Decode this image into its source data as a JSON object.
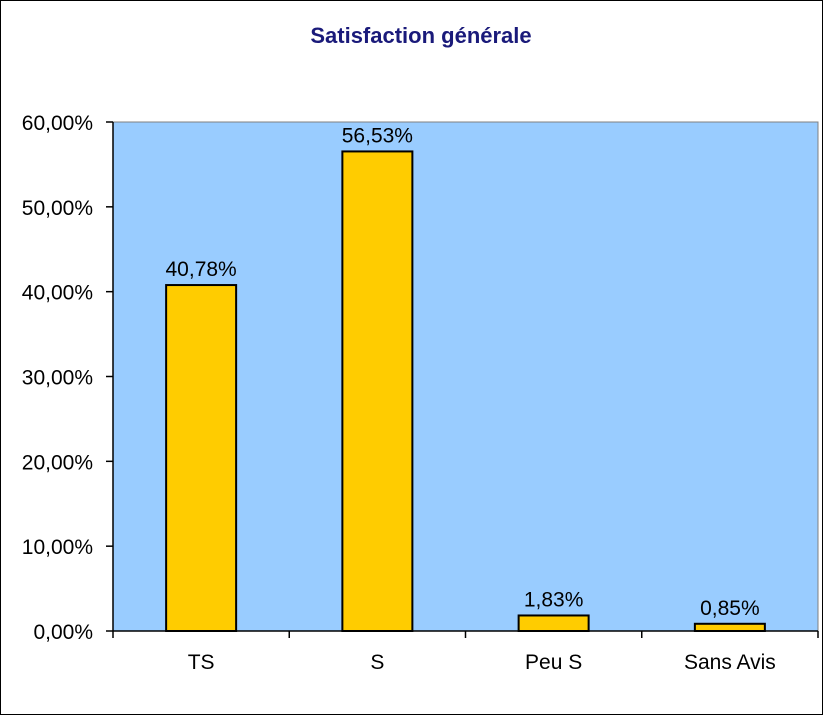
{
  "chart_data": {
    "type": "bar",
    "title": "Satisfaction générale",
    "categories": [
      "TS",
      "S",
      "Peu S",
      "Sans Avis"
    ],
    "values": [
      40.78,
      56.53,
      1.83,
      0.85
    ],
    "data_labels": [
      "40,78%",
      "56,53%",
      "1,83%",
      "0,85%"
    ],
    "ylim": [
      0,
      60
    ],
    "y_ticks": [
      0,
      10,
      20,
      30,
      40,
      50,
      60
    ],
    "y_tick_labels": [
      "0,00%",
      "10,00%",
      "20,00%",
      "30,00%",
      "40,00%",
      "50,00%",
      "60,00%"
    ],
    "xlabel": "",
    "ylabel": "",
    "grid": false,
    "legend": "none",
    "colors": {
      "plot_background": "#99ccff",
      "bar_fill": "#ffcc00",
      "bar_stroke": "#000000",
      "title": "#1a1a7a"
    }
  }
}
